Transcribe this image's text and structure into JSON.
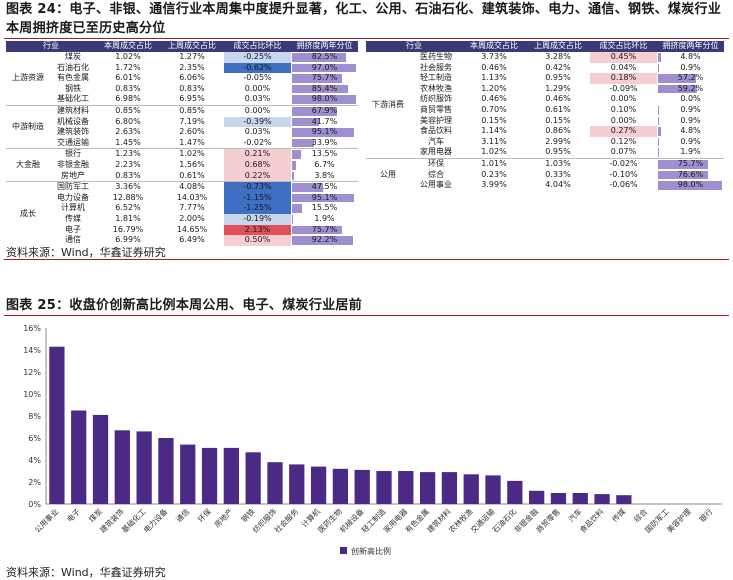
{
  "figure24": {
    "title": "图表 24：电子、非银、通信行业本周集中度提升显著，化工、公用、石油石化、建筑装饰、电力、通信、钢铁、煤炭行业本周拥挤度已至历史高分位",
    "source": "资料来源：Wind，华鑫证券研究",
    "headers": [
      "行业",
      "本周成交占比",
      "上周成交占比",
      "成交占比环比",
      "拥挤度两年分位"
    ],
    "left_groups": [
      {
        "group": "上游资源",
        "rows": [
          {
            "name": "煤炭",
            "this": "1.02%",
            "last": "1.27%",
            "chg": "-0.25%",
            "pct": "82.5%"
          },
          {
            "name": "石油石化",
            "this": "1.72%",
            "last": "2.35%",
            "chg": "-0.62%",
            "pct": "97.0%"
          },
          {
            "name": "有色金属",
            "this": "6.01%",
            "last": "6.06%",
            "chg": "-0.05%",
            "pct": "75.7%"
          },
          {
            "name": "钢铁",
            "this": "0.83%",
            "last": "0.83%",
            "chg": "0.00%",
            "pct": "85.4%"
          },
          {
            "name": "基础化工",
            "this": "6.98%",
            "last": "6.95%",
            "chg": "0.03%",
            "pct": "98.0%"
          }
        ]
      },
      {
        "group": "中游制造",
        "rows": [
          {
            "name": "建筑材料",
            "this": "0.85%",
            "last": "0.85%",
            "chg": "0.00%",
            "pct": "67.9%"
          },
          {
            "name": "机械设备",
            "this": "6.80%",
            "last": "7.19%",
            "chg": "-0.39%",
            "pct": "41.7%"
          },
          {
            "name": "建筑装饰",
            "this": "2.63%",
            "last": "2.60%",
            "chg": "0.03%",
            "pct": "95.1%"
          },
          {
            "name": "交通运输",
            "this": "1.45%",
            "last": "1.47%",
            "chg": "-0.02%",
            "pct": "33.9%"
          }
        ]
      },
      {
        "group": "大金融",
        "rows": [
          {
            "name": "银行",
            "this": "1.23%",
            "last": "1.02%",
            "chg": "0.21%",
            "pct": "13.5%"
          },
          {
            "name": "非银金融",
            "this": "2.23%",
            "last": "1.56%",
            "chg": "0.68%",
            "pct": "6.7%"
          },
          {
            "name": "房地产",
            "this": "0.83%",
            "last": "0.61%",
            "chg": "0.22%",
            "pct": "3.8%"
          }
        ]
      },
      {
        "group": "成长",
        "rows": [
          {
            "name": "国防军工",
            "this": "3.36%",
            "last": "4.08%",
            "chg": "-0.73%",
            "pct": "47.5%"
          },
          {
            "name": "电力设备",
            "this": "12.88%",
            "last": "14.03%",
            "chg": "-1.15%",
            "pct": "95.1%"
          },
          {
            "name": "计算机",
            "this": "6.52%",
            "last": "7.77%",
            "chg": "-1.25%",
            "pct": "15.5%"
          },
          {
            "name": "传媒",
            "this": "1.81%",
            "last": "2.00%",
            "chg": "-0.19%",
            "pct": "1.9%"
          },
          {
            "name": "电子",
            "this": "16.79%",
            "last": "14.65%",
            "chg": "2.13%",
            "pct": "75.7%"
          },
          {
            "name": "通信",
            "this": "6.99%",
            "last": "6.49%",
            "chg": "0.50%",
            "pct": "92.2%"
          }
        ]
      }
    ],
    "right_groups": [
      {
        "group": "下游消费",
        "rows": [
          {
            "name": "医药生物",
            "this": "3.73%",
            "last": "3.28%",
            "chg": "0.45%",
            "pct": "4.8%"
          },
          {
            "name": "社会服务",
            "this": "0.46%",
            "last": "0.42%",
            "chg": "0.04%",
            "pct": "0.9%"
          },
          {
            "name": "轻工制造",
            "this": "1.13%",
            "last": "0.95%",
            "chg": "0.18%",
            "pct": "57.2%"
          },
          {
            "name": "农林牧渔",
            "this": "1.20%",
            "last": "1.29%",
            "chg": "-0.09%",
            "pct": "59.2%"
          },
          {
            "name": "纺织服饰",
            "this": "0.46%",
            "last": "0.46%",
            "chg": "0.00%",
            "pct": "0.0%"
          },
          {
            "name": "商贸零售",
            "this": "0.70%",
            "last": "0.61%",
            "chg": "0.10%",
            "pct": "0.9%"
          },
          {
            "name": "美容护理",
            "this": "0.15%",
            "last": "0.15%",
            "chg": "0.00%",
            "pct": "0.9%"
          },
          {
            "name": "食品饮料",
            "this": "1.14%",
            "last": "0.86%",
            "chg": "0.27%",
            "pct": "4.8%"
          },
          {
            "name": "汽车",
            "this": "3.11%",
            "last": "2.99%",
            "chg": "0.12%",
            "pct": "0.9%"
          },
          {
            "name": "家用电器",
            "this": "1.02%",
            "last": "0.95%",
            "chg": "0.07%",
            "pct": "1.9%"
          }
        ]
      },
      {
        "group": "公用",
        "rows": [
          {
            "name": "环保",
            "this": "1.01%",
            "last": "1.03%",
            "chg": "-0.02%",
            "pct": "75.7%"
          },
          {
            "name": "综合",
            "this": "0.23%",
            "last": "0.33%",
            "chg": "-0.10%",
            "pct": "76.6%"
          },
          {
            "name": "公用事业",
            "this": "3.99%",
            "last": "4.04%",
            "chg": "-0.06%",
            "pct": "98.0%"
          }
        ]
      }
    ],
    "colors": {
      "header": "#3a3a78",
      "pct_bar": "#9d8fd0",
      "neg_strong": "#3d6fc2",
      "neg_light": "#c9d6ef",
      "pos_strong": "#e0505a",
      "pos_light": "#f6cdd0"
    }
  },
  "figure25": {
    "title": "图表 25：收盘价创新高比例本周公用、电子、煤炭行业居前",
    "source": "资料来源：Wind，华鑫证券研究",
    "bar_color": "#4b2a86"
  },
  "chart_data": {
    "type": "bar",
    "categories": [
      "公用事业",
      "电子",
      "煤炭",
      "建筑装饰",
      "基础化工",
      "电力设备",
      "通信",
      "环保",
      "房地产",
      "钢铁",
      "纺织服饰",
      "社会服务",
      "计算机",
      "医药生物",
      "机械设备",
      "轻工制造",
      "家用电器",
      "有色金属",
      "建筑材料",
      "农林牧渔",
      "交通运输",
      "石油石化",
      "非银金融",
      "商贸零售",
      "汽车",
      "食品饮料",
      "传媒",
      "综合",
      "国防军工",
      "美容护理",
      "银行"
    ],
    "series": [
      {
        "name": "创新高比例",
        "values": [
          14.3,
          8.5,
          8.1,
          6.7,
          6.6,
          6.0,
          5.4,
          5.1,
          5.1,
          4.7,
          3.8,
          3.6,
          3.4,
          3.2,
          3.1,
          3.0,
          3.0,
          2.9,
          2.9,
          2.7,
          2.6,
          2.1,
          1.2,
          1.0,
          1.0,
          0.9,
          0.8,
          0.0,
          0.0,
          0.0,
          0.0
        ]
      }
    ],
    "yticks": [
      "0%",
      "2%",
      "4%",
      "6%",
      "8%",
      "10%",
      "12%",
      "14%",
      "16%"
    ],
    "ylim": [
      0,
      16
    ],
    "legend": "bottom-center",
    "grid": false
  }
}
